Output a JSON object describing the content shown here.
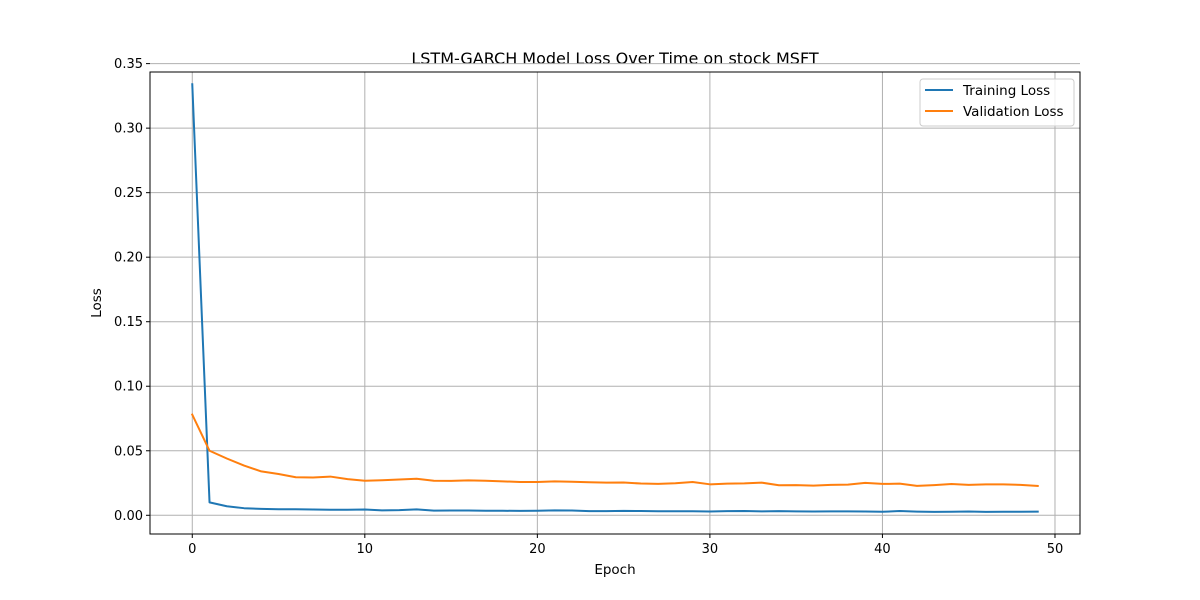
{
  "chart_data": {
    "type": "line",
    "title": "LSTM-GARCH Model Loss Over Time on stock MSFT",
    "xlabel": "Epoch",
    "ylabel": "Loss",
    "xlim": [
      -2.45,
      51.45
    ],
    "ylim": [
      -0.0145,
      0.3435
    ],
    "xticks": [
      0,
      10,
      20,
      30,
      40,
      50
    ],
    "xtick_labels": [
      "0",
      "10",
      "20",
      "30",
      "40",
      "50"
    ],
    "yticks": [
      0.0,
      0.05,
      0.1,
      0.15,
      0.2,
      0.25,
      0.3,
      0.35
    ],
    "ytick_labels": [
      "0.00",
      "0.05",
      "0.10",
      "0.15",
      "0.20",
      "0.25",
      "0.30",
      "0.35"
    ],
    "grid": true,
    "legend_position": "top-right",
    "x": [
      0,
      1,
      2,
      3,
      4,
      5,
      6,
      7,
      8,
      9,
      10,
      11,
      12,
      13,
      14,
      15,
      16,
      17,
      18,
      19,
      20,
      21,
      22,
      23,
      24,
      25,
      26,
      27,
      28,
      29,
      30,
      31,
      32,
      33,
      34,
      35,
      36,
      37,
      38,
      39,
      40,
      41,
      42,
      43,
      44,
      45,
      46,
      47,
      48,
      49
    ],
    "series": [
      {
        "name": "Training Loss",
        "color": "#1f77b4",
        "values": [
          0.334,
          0.01,
          0.007,
          0.0055,
          0.005,
          0.0047,
          0.0047,
          0.0045,
          0.0043,
          0.0043,
          0.0045,
          0.0038,
          0.004,
          0.0046,
          0.0036,
          0.0037,
          0.0037,
          0.0035,
          0.0035,
          0.0034,
          0.0035,
          0.0038,
          0.0037,
          0.0032,
          0.0032,
          0.0034,
          0.0033,
          0.0031,
          0.0031,
          0.0031,
          0.0029,
          0.0032,
          0.0033,
          0.003,
          0.0032,
          0.003,
          0.0029,
          0.003,
          0.003,
          0.0029,
          0.0027,
          0.0033,
          0.0028,
          0.0026,
          0.0027,
          0.0029,
          0.0026,
          0.0027,
          0.0027,
          0.0028
        ]
      },
      {
        "name": "Validation Loss",
        "color": "#ff7f0e",
        "values": [
          0.078,
          0.05,
          0.044,
          0.0385,
          0.034,
          0.032,
          0.0295,
          0.0293,
          0.03,
          0.028,
          0.0268,
          0.0272,
          0.0277,
          0.0283,
          0.0268,
          0.0267,
          0.0271,
          0.0268,
          0.0263,
          0.0258,
          0.0258,
          0.0263,
          0.026,
          0.0256,
          0.0253,
          0.0254,
          0.0246,
          0.0243,
          0.0248,
          0.0258,
          0.024,
          0.0245,
          0.0247,
          0.0253,
          0.0233,
          0.0234,
          0.023,
          0.0236,
          0.0238,
          0.0251,
          0.0243,
          0.0245,
          0.0228,
          0.0234,
          0.0242,
          0.0236,
          0.024,
          0.024,
          0.0236,
          0.0227
        ]
      }
    ]
  }
}
